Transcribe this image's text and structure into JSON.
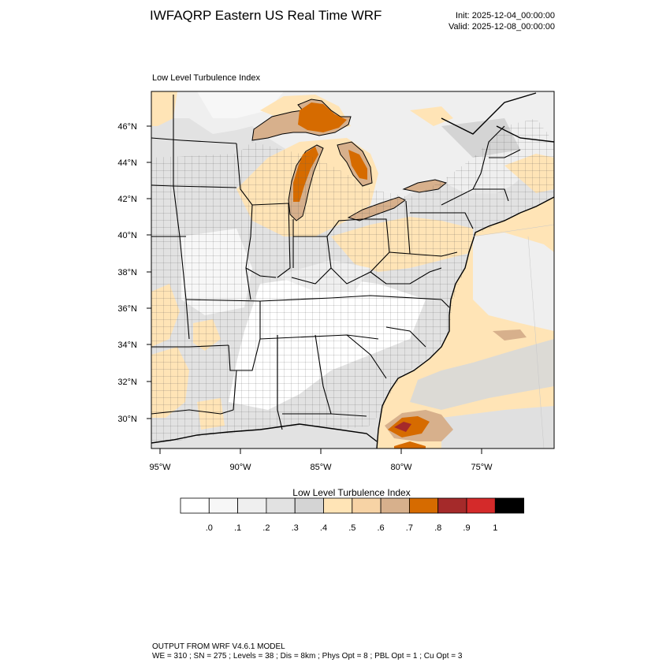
{
  "header": {
    "title": "IWFAQRP Eastern US Real Time WRF",
    "init": "Init: 2025-12-04_00:00:00",
    "valid": "Valid: 2025-12-08_00:00:00"
  },
  "map": {
    "subtitle": "Low Level Turbulence Index",
    "lat_labels": [
      "46°N",
      "44°N",
      "42°N",
      "40°N",
      "38°N",
      "36°N",
      "34°N",
      "32°N",
      "30°N"
    ],
    "lon_labels": [
      "95°W",
      "90°W",
      "85°W",
      "80°W",
      "75°W"
    ]
  },
  "colorbar": {
    "title": "Low Level Turbulence Index",
    "colors": [
      "#ffffff",
      "#f7f7f7",
      "#efefef",
      "#e2e2e2",
      "#d4d4d4",
      "#ffe4b6",
      "#f7d3a5",
      "#d7b08c",
      "#d66b00",
      "#a52a2a",
      "#d42a2a",
      "#000000"
    ],
    "labels": [
      ".0",
      ".1",
      ".2",
      ".3",
      ".4",
      ".5",
      ".6",
      ".7",
      ".8",
      ".9",
      "1"
    ]
  },
  "footer": {
    "line1": "OUTPUT FROM WRF V4.6.1 MODEL",
    "line2": "WE = 310 ; SN = 275 ; Levels = 38 ; Dis = 8km ; Phys Opt = 8 ; PBL Opt = 1 ; Cu Opt = 3"
  }
}
